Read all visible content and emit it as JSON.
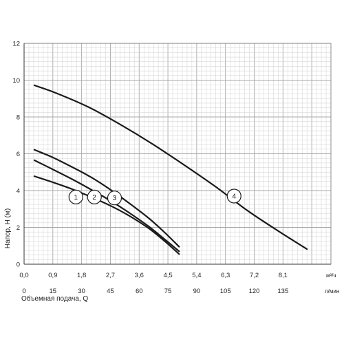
{
  "chart_data": {
    "type": "line",
    "title": "",
    "ylabel": "Напор, Н (м)",
    "xlabel": "Объемная подача, Q",
    "x_unit_primary": "м³/ч",
    "x_unit_secondary": "л/мин",
    "xlim": [
      0,
      9.6
    ],
    "ylim": [
      0,
      12
    ],
    "x_ticks_primary": [
      "0,0",
      "0,9",
      "1,8",
      "2,7",
      "3,6",
      "4,5",
      "5,4",
      "6,3",
      "7,2",
      "8,1"
    ],
    "x_ticks_primary_values": [
      0,
      0.9,
      1.8,
      2.7,
      3.6,
      4.5,
      5.4,
      6.3,
      7.2,
      8.1
    ],
    "x_ticks_secondary": [
      "0",
      "15",
      "30",
      "45",
      "60",
      "75",
      "90",
      "105",
      "120",
      "135"
    ],
    "y_ticks": [
      "0",
      "2",
      "4",
      "6",
      "8",
      "10",
      "12"
    ],
    "y_ticks_values": [
      0,
      2,
      4,
      6,
      8,
      10,
      12
    ],
    "grid": true,
    "colors": {
      "grid_minor": "#cfcfcf",
      "grid_major": "#a8a8a8",
      "curve": "#1a1a1a",
      "marker_fill": "#ffffff"
    },
    "series": [
      {
        "name": "1",
        "label_at": [
          1.62,
          3.65
        ],
        "x": [
          0.32,
          0.9,
          1.5,
          2.1,
          2.7,
          3.3,
          3.9,
          4.4,
          4.85
        ],
        "y": [
          4.78,
          4.45,
          4.08,
          3.65,
          3.18,
          2.62,
          1.95,
          1.25,
          0.55
        ]
      },
      {
        "name": "2",
        "label_at": [
          2.2,
          3.65
        ],
        "x": [
          0.32,
          0.9,
          1.5,
          2.1,
          2.7,
          3.3,
          3.9,
          4.4,
          4.85
        ],
        "y": [
          5.65,
          5.15,
          4.62,
          4.05,
          3.45,
          2.78,
          2.05,
          1.35,
          0.7
        ]
      },
      {
        "name": "3",
        "label_at": [
          2.83,
          3.6
        ],
        "x": [
          0.32,
          0.9,
          1.5,
          2.1,
          2.7,
          3.3,
          3.9,
          4.4,
          4.85
        ],
        "y": [
          6.22,
          5.8,
          5.28,
          4.72,
          4.05,
          3.3,
          2.5,
          1.72,
          0.95
        ]
      },
      {
        "name": "4",
        "label_at": [
          6.57,
          3.7
        ],
        "x": [
          0.32,
          1.0,
          2.0,
          3.0,
          4.0,
          5.0,
          6.0,
          7.0,
          8.0,
          8.85
        ],
        "y": [
          9.72,
          9.3,
          8.55,
          7.6,
          6.55,
          5.4,
          4.2,
          2.9,
          1.75,
          0.82
        ]
      }
    ]
  }
}
